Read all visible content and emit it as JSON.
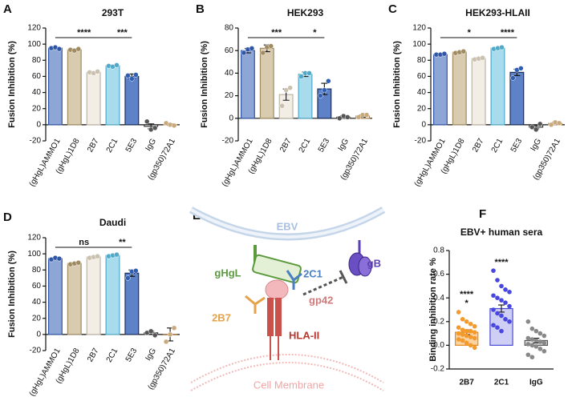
{
  "chart_data": [
    {
      "type": "bar",
      "panel": "A",
      "title": "293T",
      "y_label": "Fusion Inhibition (%)",
      "categories": [
        "(gHgL)AMMO1",
        "(gHgL)1D8",
        "2B7",
        "2C1",
        "5E3",
        "IgG",
        "(gp350)72A1"
      ],
      "values": [
        95,
        93,
        65,
        73,
        60,
        -2,
        0.3
      ],
      "errors": [
        1,
        1,
        1,
        1,
        3,
        3,
        1
      ],
      "points": [
        [
          95,
          96,
          94
        ],
        [
          93,
          92,
          94
        ],
        [
          65,
          64,
          66
        ],
        [
          73,
          72,
          74
        ],
        [
          61,
          57,
          62
        ],
        [
          4,
          -6,
          -4
        ],
        [
          2,
          0,
          -1
        ]
      ],
      "colors": [
        "#8ea6d6",
        "#d9cbb0",
        "#f2eee6",
        "#a8dcec",
        "#5d82c8",
        "#ffffff",
        "#ffffff"
      ],
      "edge_colors": [
        "#2f56a6",
        "#a08a5f",
        "#bdb4a3",
        "#4fa9c9",
        "#1b2e5c",
        "#333333",
        "#b08a55"
      ],
      "point_colors": [
        "#2f56a6",
        "#a08a5f",
        "#c9c0ae",
        "#4fa9c9",
        "#2f5fb5",
        "#555555",
        "#c9a87a"
      ],
      "ylim": [
        -20,
        120
      ],
      "yticks": [
        -20,
        0,
        20,
        40,
        60,
        80,
        100,
        120
      ],
      "significance": [
        {
          "label": "****",
          "from": "(gHgL)AMMO1",
          "to": "2C1"
        },
        {
          "label": "***",
          "from": "2C1",
          "to": "5E3"
        }
      ]
    },
    {
      "type": "bar",
      "panel": "B",
      "title": "HEK293",
      "y_label": "Fusion Inhibition (%)",
      "categories": [
        "(gHgL)AMMO1",
        "(gHgL)1D8",
        "2B7",
        "2C1",
        "5E3",
        "IgG",
        "(gp350)72A1"
      ],
      "values": [
        60,
        62,
        21,
        39,
        26,
        1,
        2
      ],
      "errors": [
        2,
        3,
        5,
        2,
        5,
        1,
        1
      ],
      "points": [
        [
          58,
          61,
          62
        ],
        [
          58,
          63,
          64
        ],
        [
          11,
          25,
          27
        ],
        [
          37,
          40,
          40
        ],
        [
          20,
          25,
          33
        ],
        [
          0,
          2,
          1
        ],
        [
          1,
          3,
          3
        ]
      ],
      "colors": [
        "#8ea6d6",
        "#d9cbb0",
        "#f2eee6",
        "#a8dcec",
        "#5d82c8",
        "#ffffff",
        "#ffffff"
      ],
      "edge_colors": [
        "#2f56a6",
        "#a08a5f",
        "#bdb4a3",
        "#4fa9c9",
        "#1b2e5c",
        "#333333",
        "#b08a55"
      ],
      "point_colors": [
        "#2f56a6",
        "#a08a5f",
        "#c9c0ae",
        "#4fa9c9",
        "#2f5fb5",
        "#555555",
        "#c9a87a"
      ],
      "ylim": [
        -20,
        80
      ],
      "yticks": [
        -20,
        0,
        20,
        40,
        60,
        80
      ],
      "significance": [
        {
          "label": "***",
          "from": "(gHgL)AMMO1",
          "to": "2C1"
        },
        {
          "label": "*",
          "from": "2C1",
          "to": "5E3"
        }
      ]
    },
    {
      "type": "bar",
      "panel": "C",
      "title": "HEK293-HLAII",
      "y_label": "Fusion Inhibition (%)",
      "categories": [
        "(gHgL)AMMO1",
        "(gHgL)1D8",
        "2B7",
        "2C1",
        "5E3",
        "IgG",
        "(gp350)72A1"
      ],
      "values": [
        87,
        90,
        82,
        95,
        65,
        -3,
        1.7
      ],
      "errors": [
        1,
        1,
        1,
        1,
        4,
        2,
        1
      ],
      "points": [
        [
          87,
          87,
          88
        ],
        [
          89,
          90,
          91
        ],
        [
          81,
          82,
          83
        ],
        [
          94,
          95,
          96
        ],
        [
          58,
          68,
          70
        ],
        [
          -3,
          -6,
          1
        ],
        [
          0,
          3,
          2
        ]
      ],
      "colors": [
        "#8ea6d6",
        "#d9cbb0",
        "#f2eee6",
        "#a8dcec",
        "#5d82c8",
        "#ffffff",
        "#ffffff"
      ],
      "edge_colors": [
        "#2f56a6",
        "#a08a5f",
        "#bdb4a3",
        "#4fa9c9",
        "#1b2e5c",
        "#333333",
        "#b08a55"
      ],
      "point_colors": [
        "#2f56a6",
        "#a08a5f",
        "#c9c0ae",
        "#4fa9c9",
        "#2f5fb5",
        "#555555",
        "#c9a87a"
      ],
      "ylim": [
        -20,
        120
      ],
      "yticks": [
        -20,
        0,
        20,
        40,
        60,
        80,
        100,
        120
      ],
      "significance": [
        {
          "label": "*",
          "from": "(gHgL)AMMO1",
          "to": "2C1"
        },
        {
          "label": "****",
          "from": "2C1",
          "to": "5E3"
        }
      ]
    },
    {
      "type": "bar",
      "panel": "D",
      "title": "Daudi",
      "y_label": "Fusion Inhibition (%)",
      "categories": [
        "(gHgL)AMMO1",
        "(gHgL)1D8",
        "2B7",
        "2C1",
        "5E3",
        "IgG",
        "(gp350)72A1"
      ],
      "values": [
        94,
        88,
        96,
        98,
        76,
        2,
        0
      ],
      "errors": [
        1,
        1,
        1,
        1,
        4,
        2,
        8
      ],
      "points": [
        [
          93,
          95,
          94
        ],
        [
          87,
          88,
          89
        ],
        [
          95,
          96,
          97
        ],
        [
          97,
          98,
          99
        ],
        [
          70,
          78,
          79
        ],
        [
          2,
          4,
          -1
        ],
        [
          -9,
          0,
          8
        ]
      ],
      "colors": [
        "#8ea6d6",
        "#d9cbb0",
        "#f2eee6",
        "#a8dcec",
        "#5d82c8",
        "#ffffff",
        "#ffffff"
      ],
      "edge_colors": [
        "#2f56a6",
        "#a08a5f",
        "#bdb4a3",
        "#4fa9c9",
        "#1b2e5c",
        "#333333",
        "#b08a55"
      ],
      "point_colors": [
        "#2f56a6",
        "#a08a5f",
        "#c9c0ae",
        "#4fa9c9",
        "#2f5fb5",
        "#555555",
        "#c9a87a"
      ],
      "ylim": [
        -20,
        120
      ],
      "yticks": [
        -20,
        0,
        20,
        40,
        60,
        80,
        100,
        120
      ],
      "significance": [
        {
          "label": "ns",
          "from": "(gHgL)AMMO1",
          "to": "2C1"
        },
        {
          "label": "**",
          "from": "2C1",
          "to": "5E3"
        }
      ]
    },
    {
      "type": "bar",
      "panel": "F",
      "title": "EBV+ human sera",
      "y_label": "Binding inhibition rate %",
      "categories": [
        "2B7",
        "2C1",
        "IgG"
      ],
      "values": [
        0.11,
        0.31,
        0.04
      ],
      "errors": [
        0.02,
        0.03,
        0.02
      ],
      "points": [
        [
          0.28,
          0.22,
          0.2,
          0.18,
          0.16,
          0.15,
          0.13,
          0.12,
          0.12,
          0.11,
          0.1,
          0.09,
          0.08,
          0.07,
          0.06,
          0.05,
          0.04,
          0.02,
          0.0,
          -0.02
        ],
        [
          0.63,
          0.55,
          0.5,
          0.47,
          0.45,
          0.42,
          0.4,
          0.38,
          0.36,
          0.33,
          0.3,
          0.27,
          0.25,
          0.22,
          0.2,
          0.17,
          0.15,
          0.12
        ],
        [
          0.2,
          0.14,
          0.12,
          0.1,
          0.08,
          0.06,
          0.05,
          0.04,
          0.03,
          0.02,
          0.01,
          0,
          -0.01,
          -0.03,
          -0.05,
          -0.08,
          -0.1
        ]
      ],
      "colors": [
        "#fbd3a3",
        "#cfcff5",
        "#e2e2e2"
      ],
      "edge_colors": [
        "#e88a1a",
        "#4a4ad6",
        "#555555"
      ],
      "point_colors": [
        "#f39a2b",
        "#4747e0",
        "#888888"
      ],
      "ylim": [
        -0.2,
        0.8
      ],
      "yticks": [
        -0.2,
        {
          "value": 0,
          "label": "0.0"
        },
        0.2,
        0.4,
        0.6,
        0.8
      ],
      "annotations": [
        {
          "label": "****",
          "category": "2B7",
          "color": "#3d3fd6"
        },
        {
          "label": "*",
          "category": "2B7",
          "color": "#555555"
        },
        {
          "label": "****",
          "category": "2C1",
          "color": "#555555"
        }
      ]
    }
  ],
  "diagram": {
    "panel": "E",
    "labels": {
      "virus": "EBV",
      "gHgL": "gHgL",
      "c2C1": "2C1",
      "gB": "gB",
      "gp42": "gp42",
      "b2B7": "2B7",
      "hla": "HLA-II",
      "membrane": "Cell Membrane"
    }
  }
}
